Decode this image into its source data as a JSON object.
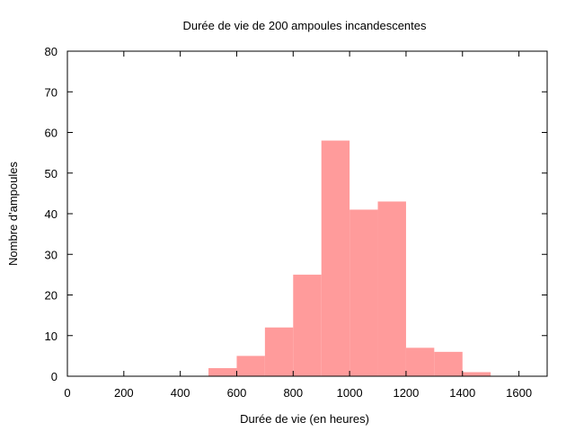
{
  "chart_data": {
    "type": "bar",
    "subtype": "histogram",
    "title": "Durée de vie de 200 ampoules incandescentes",
    "xlabel": "Durée de vie (en heures)",
    "ylabel": "Nombre d'ampoules",
    "xlim": [
      0,
      1700
    ],
    "ylim": [
      0,
      80
    ],
    "xticks": [
      "0",
      "200",
      "400",
      "600",
      "800",
      "1000",
      "1200",
      "1400",
      "1600"
    ],
    "yticks": [
      "0",
      "10",
      "20",
      "30",
      "40",
      "50",
      "60",
      "70",
      "80"
    ],
    "bin_width": 100,
    "bins": [
      {
        "start": 500,
        "end": 600,
        "value": 2
      },
      {
        "start": 600,
        "end": 700,
        "value": 5
      },
      {
        "start": 700,
        "end": 800,
        "value": 12
      },
      {
        "start": 800,
        "end": 900,
        "value": 25
      },
      {
        "start": 900,
        "end": 1000,
        "value": 58
      },
      {
        "start": 1000,
        "end": 1100,
        "value": 41
      },
      {
        "start": 1100,
        "end": 1200,
        "value": 43
      },
      {
        "start": 1200,
        "end": 1300,
        "value": 7
      },
      {
        "start": 1300,
        "end": 1400,
        "value": 6
      },
      {
        "start": 1400,
        "end": 1500,
        "value": 1
      }
    ],
    "bar_color": "#ff9b9b",
    "grid": false,
    "legend": "none"
  }
}
